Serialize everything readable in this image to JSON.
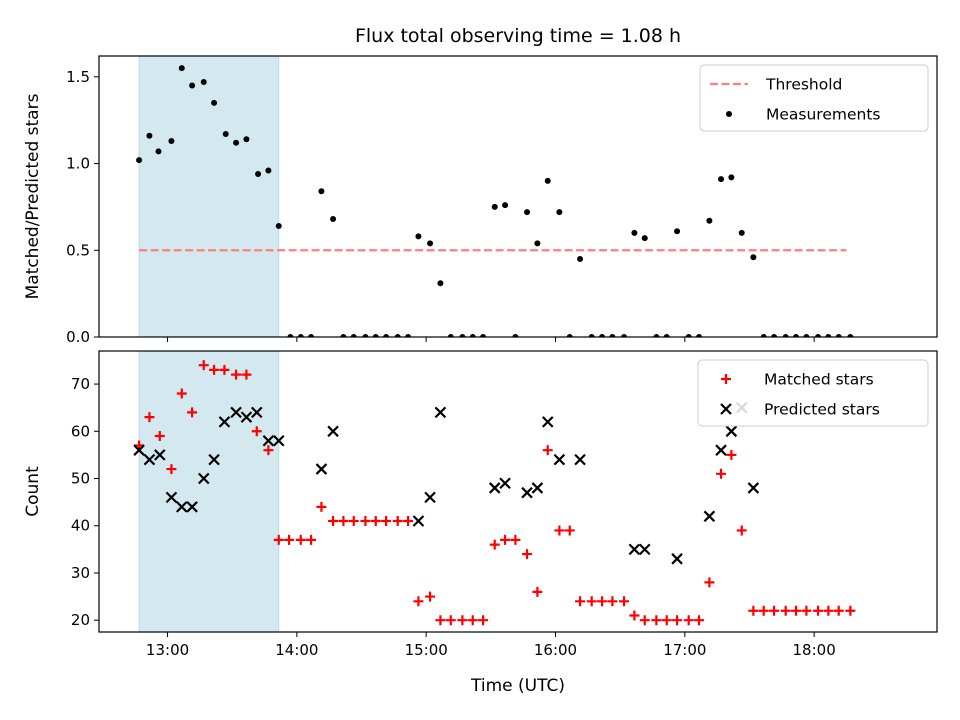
{
  "chart_data": {
    "type": "scatter",
    "title": "Flux total observing time = 1.08 h",
    "xlabel": "Time (UTC)",
    "x_ticks": [
      "13:00",
      "14:00",
      "15:00",
      "16:00",
      "17:00",
      "18:00"
    ],
    "x_tick_hours": [
      13,
      14,
      15,
      16,
      17,
      18
    ],
    "xlim_hours": [
      12.47,
      18.95
    ],
    "highlight_span_hours": [
      12.78,
      13.86
    ],
    "highlight_color": "#d3e9ef",
    "panels": [
      {
        "ylabel": "Matched/Predicted stars",
        "ylim": [
          0,
          1.62
        ],
        "y_ticks": [
          0.0,
          0.5,
          1.0,
          1.5
        ],
        "y_tick_labels": [
          "0.0",
          "0.5",
          "1.0",
          "1.5"
        ],
        "legend": [
          "Threshold",
          "Measurements"
        ],
        "legend_position": "upper right",
        "threshold": {
          "name": "Threshold",
          "value": 0.5,
          "color": "#ff7f7f",
          "x_range": [
            12.78,
            18.25
          ]
        },
        "series": [
          {
            "name": "Measurements",
            "color": "#000000",
            "points": [
              [
                12.78,
                1.02
              ],
              [
                12.86,
                1.16
              ],
              [
                12.93,
                1.07
              ],
              [
                13.03,
                1.13
              ],
              [
                13.11,
                1.55
              ],
              [
                13.19,
                1.45
              ],
              [
                13.28,
                1.47
              ],
              [
                13.36,
                1.35
              ],
              [
                13.45,
                1.17
              ],
              [
                13.53,
                1.12
              ],
              [
                13.61,
                1.14
              ],
              [
                13.7,
                0.94
              ],
              [
                13.78,
                0.96
              ],
              [
                13.86,
                0.64
              ],
              [
                13.95,
                0.0
              ],
              [
                14.03,
                0.0
              ],
              [
                14.11,
                0.0
              ],
              [
                14.19,
                0.84
              ],
              [
                14.28,
                0.68
              ],
              [
                14.36,
                0.0
              ],
              [
                14.44,
                0.0
              ],
              [
                14.53,
                0.0
              ],
              [
                14.61,
                0.0
              ],
              [
                14.69,
                0.0
              ],
              [
                14.78,
                0.0
              ],
              [
                14.86,
                0.0
              ],
              [
                14.94,
                0.58
              ],
              [
                15.03,
                0.54
              ],
              [
                15.11,
                0.31
              ],
              [
                15.19,
                0.0
              ],
              [
                15.28,
                0.0
              ],
              [
                15.36,
                0.0
              ],
              [
                15.44,
                0.0
              ],
              [
                15.53,
                0.75
              ],
              [
                15.61,
                0.76
              ],
              [
                15.69,
                0.0
              ],
              [
                15.78,
                0.72
              ],
              [
                15.86,
                0.54
              ],
              [
                15.94,
                0.9
              ],
              [
                16.03,
                0.72
              ],
              [
                16.11,
                0.0
              ],
              [
                16.19,
                0.45
              ],
              [
                16.28,
                0.0
              ],
              [
                16.36,
                0.0
              ],
              [
                16.44,
                0.0
              ],
              [
                16.53,
                0.0
              ],
              [
                16.61,
                0.6
              ],
              [
                16.69,
                0.57
              ],
              [
                16.78,
                0.0
              ],
              [
                16.86,
                0.0
              ],
              [
                16.94,
                0.61
              ],
              [
                17.03,
                0.0
              ],
              [
                17.11,
                0.0
              ],
              [
                17.19,
                0.67
              ],
              [
                17.28,
                0.91
              ],
              [
                17.36,
                0.92
              ],
              [
                17.44,
                0.6
              ],
              [
                17.53,
                0.46
              ],
              [
                17.61,
                0.0
              ],
              [
                17.69,
                0.0
              ],
              [
                17.78,
                0.0
              ],
              [
                17.86,
                0.0
              ],
              [
                17.94,
                0.0
              ],
              [
                18.03,
                0.0
              ],
              [
                18.11,
                0.0
              ],
              [
                18.19,
                0.0
              ],
              [
                18.28,
                0.0
              ]
            ]
          }
        ]
      },
      {
        "ylabel": "Count",
        "ylim": [
          17.5,
          77
        ],
        "y_ticks": [
          20,
          30,
          40,
          50,
          60,
          70
        ],
        "y_tick_labels": [
          "20",
          "30",
          "40",
          "50",
          "60",
          "70"
        ],
        "legend": [
          "Matched stars",
          "Predicted stars"
        ],
        "legend_position": "upper right",
        "series": [
          {
            "name": "Matched stars",
            "marker": "+",
            "color": "#ff0000",
            "points": [
              [
                12.78,
                57
              ],
              [
                12.86,
                63
              ],
              [
                12.94,
                59
              ],
              [
                13.03,
                52
              ],
              [
                13.11,
                68
              ],
              [
                13.19,
                64
              ],
              [
                13.28,
                74
              ],
              [
                13.36,
                73
              ],
              [
                13.44,
                73
              ],
              [
                13.53,
                72
              ],
              [
                13.61,
                72
              ],
              [
                13.69,
                60
              ],
              [
                13.78,
                56
              ],
              [
                13.86,
                37
              ],
              [
                13.94,
                37
              ],
              [
                14.03,
                37
              ],
              [
                14.11,
                37
              ],
              [
                14.19,
                44
              ],
              [
                14.28,
                41
              ],
              [
                14.36,
                41
              ],
              [
                14.44,
                41
              ],
              [
                14.53,
                41
              ],
              [
                14.61,
                41
              ],
              [
                14.69,
                41
              ],
              [
                14.78,
                41
              ],
              [
                14.86,
                41
              ],
              [
                14.94,
                24
              ],
              [
                15.03,
                25
              ],
              [
                15.11,
                20
              ],
              [
                15.19,
                20
              ],
              [
                15.28,
                20
              ],
              [
                15.36,
                20
              ],
              [
                15.44,
                20
              ],
              [
                15.53,
                36
              ],
              [
                15.61,
                37
              ],
              [
                15.69,
                37
              ],
              [
                15.78,
                34
              ],
              [
                15.86,
                26
              ],
              [
                15.94,
                56
              ],
              [
                16.03,
                39
              ],
              [
                16.11,
                39
              ],
              [
                16.19,
                24
              ],
              [
                16.28,
                24
              ],
              [
                16.36,
                24
              ],
              [
                16.44,
                24
              ],
              [
                16.53,
                24
              ],
              [
                16.61,
                21
              ],
              [
                16.69,
                20
              ],
              [
                16.78,
                20
              ],
              [
                16.86,
                20
              ],
              [
                16.94,
                20
              ],
              [
                17.03,
                20
              ],
              [
                17.11,
                20
              ],
              [
                17.19,
                28
              ],
              [
                17.28,
                51
              ],
              [
                17.36,
                55
              ],
              [
                17.44,
                39
              ],
              [
                17.53,
                22
              ],
              [
                17.61,
                22
              ],
              [
                17.69,
                22
              ],
              [
                17.78,
                22
              ],
              [
                17.86,
                22
              ],
              [
                17.94,
                22
              ],
              [
                18.03,
                22
              ],
              [
                18.11,
                22
              ],
              [
                18.19,
                22
              ],
              [
                18.28,
                22
              ]
            ]
          },
          {
            "name": "Predicted stars",
            "marker": "x",
            "color": "#000000",
            "points": [
              [
                12.78,
                56
              ],
              [
                12.86,
                54
              ],
              [
                12.94,
                55
              ],
              [
                13.03,
                46
              ],
              [
                13.11,
                44
              ],
              [
                13.19,
                44
              ],
              [
                13.28,
                50
              ],
              [
                13.36,
                54
              ],
              [
                13.44,
                62
              ],
              [
                13.53,
                64
              ],
              [
                13.61,
                63
              ],
              [
                13.69,
                64
              ],
              [
                13.78,
                58
              ],
              [
                13.86,
                58
              ],
              [
                14.19,
                52
              ],
              [
                14.28,
                60
              ],
              [
                14.94,
                41
              ],
              [
                15.03,
                46
              ],
              [
                15.11,
                64
              ],
              [
                15.53,
                48
              ],
              [
                15.61,
                49
              ],
              [
                15.78,
                47
              ],
              [
                15.86,
                48
              ],
              [
                15.94,
                62
              ],
              [
                16.03,
                54
              ],
              [
                16.19,
                54
              ],
              [
                16.61,
                35
              ],
              [
                16.69,
                35
              ],
              [
                16.94,
                33
              ],
              [
                17.19,
                42
              ],
              [
                17.28,
                56
              ],
              [
                17.36,
                60
              ],
              [
                17.44,
                65
              ],
              [
                17.53,
                48
              ]
            ]
          }
        ]
      }
    ]
  }
}
